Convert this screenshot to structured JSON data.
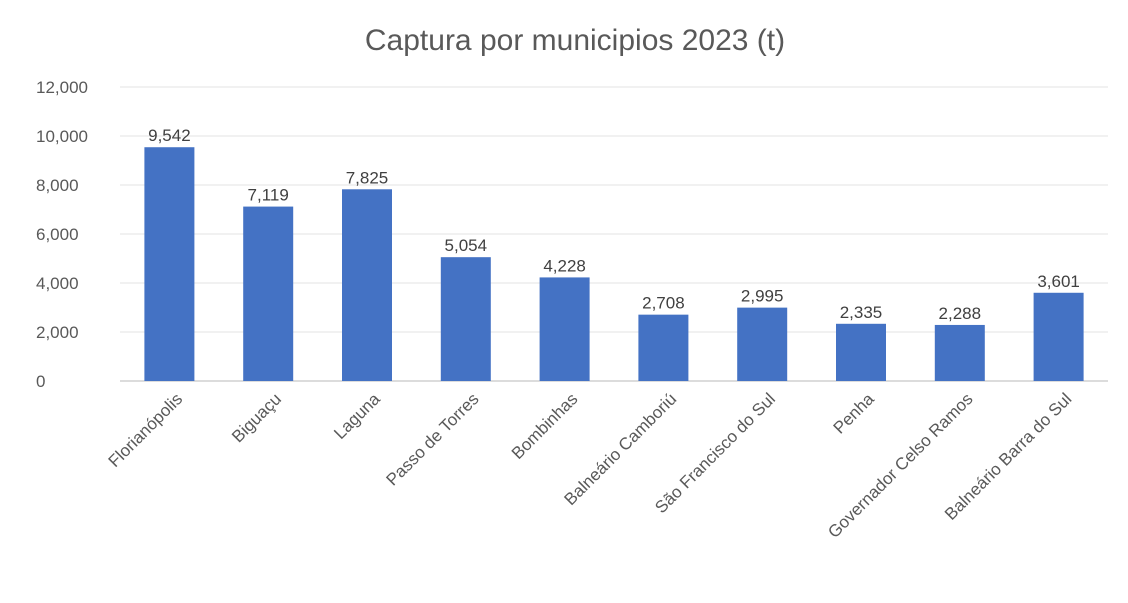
{
  "chart_data": {
    "type": "bar",
    "title": "Captura por municipios 2023 (t)",
    "xlabel": "",
    "ylabel": "",
    "categories": [
      "Florianópolis",
      "Biguaçu",
      "Laguna",
      "Passo de Torres",
      "Bombinhas",
      "Balneário Camboriú",
      "São Francisco do Sul",
      "Penha",
      "Governador Celso Ramos",
      "Balneário Barra do Sul"
    ],
    "values": [
      9542,
      7119,
      7825,
      5054,
      4228,
      2708,
      2995,
      2335,
      2288,
      3601
    ],
    "data_labels": [
      "9,542",
      "7,119",
      "7,825",
      "5,054",
      "4,228",
      "2,708",
      "2,995",
      "2,335",
      "2,288",
      "3,601"
    ],
    "ylim": [
      0,
      12000
    ],
    "yticks": [
      0,
      2000,
      4000,
      6000,
      8000,
      10000,
      12000
    ],
    "ytick_labels": [
      "0",
      "2,000",
      "4,000",
      "6,000",
      "8,000",
      "10,000",
      "12,000"
    ],
    "grid": true,
    "legend": "none",
    "bar_color": "#4472c4"
  }
}
